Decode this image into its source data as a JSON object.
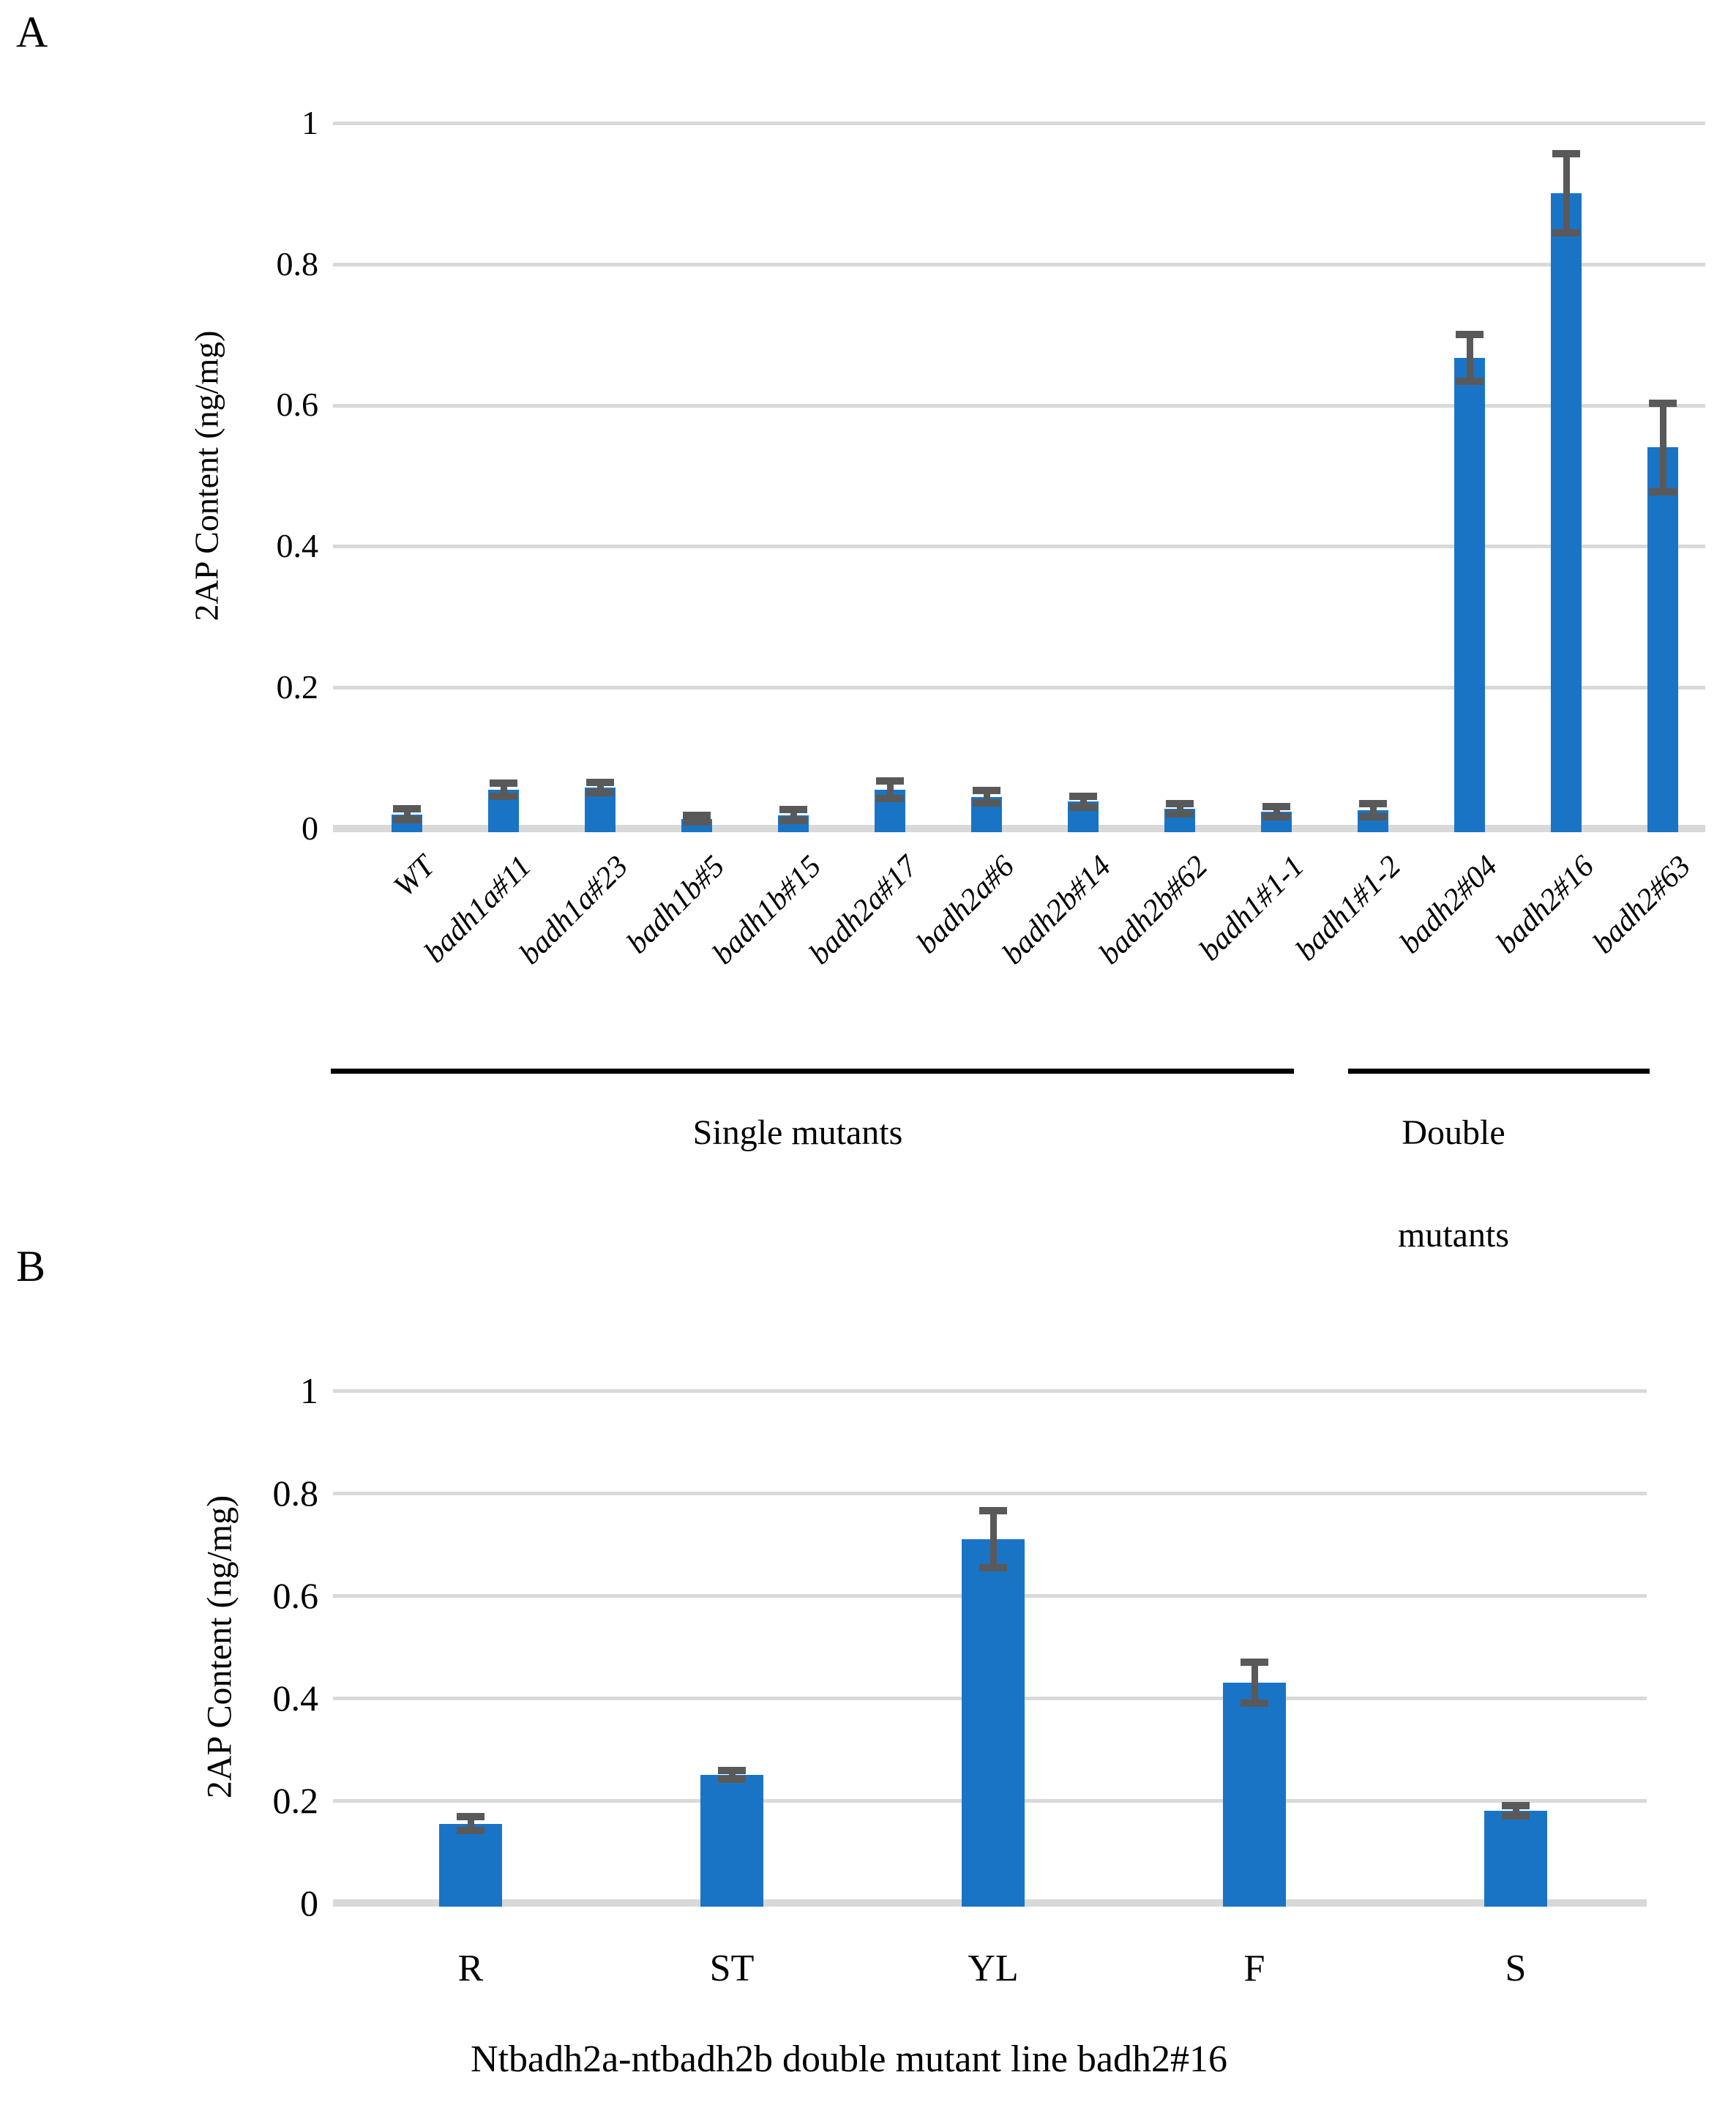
{
  "colors": {
    "bar": "#1A74C6",
    "error_bar": "#595959",
    "gridline": "#D9D9D9",
    "baseline": "#D9D9D9",
    "group_line": "#000000",
    "text": "#000000"
  },
  "chart_data": [
    {
      "panel_label": "A",
      "type": "bar",
      "title": "",
      "ylabel": "2AP Content (ng/mg)",
      "xlabel": "",
      "ylim": [
        0,
        1
      ],
      "yticks": [
        0,
        0.2,
        0.4,
        0.6,
        0.8,
        1
      ],
      "ytick_labels": [
        "0",
        "0.2",
        "0.4",
        "0.6",
        "0.8",
        "1"
      ],
      "grid": true,
      "legend": "none",
      "categories": [
        "WT",
        "badh1a#11",
        "badh1a#23",
        "badh1b#5",
        "badh1b#15",
        "badh2a#17",
        "badh2a#6",
        "badh2b#14",
        "badh2b#62",
        "badh1#1-1",
        "badh1#1-2",
        "badh2#04",
        "badh2#16",
        "badh2#63"
      ],
      "values": [
        0.02,
        0.055,
        0.058,
        0.014,
        0.019,
        0.055,
        0.045,
        0.038,
        0.028,
        0.024,
        0.026,
        0.667,
        0.9,
        0.54
      ],
      "errors": [
        0.008,
        0.009,
        0.007,
        0.005,
        0.008,
        0.012,
        0.009,
        0.008,
        0.007,
        0.007,
        0.009,
        0.033,
        0.056,
        0.063
      ],
      "groups": [
        {
          "label": "Single mutants",
          "from": "WT",
          "to": "badh1#1-2"
        },
        {
          "label": "Double mutants",
          "from": "badh2#04",
          "to": "badh2#63"
        }
      ]
    },
    {
      "panel_label": "B",
      "type": "bar",
      "title": "",
      "ylabel": "2AP Content (ng/mg)",
      "xlabel": "Ntbadh2a-ntbadh2b double mutant line badh2#16",
      "ylim": [
        0,
        1
      ],
      "yticks": [
        0,
        0.2,
        0.4,
        0.6,
        0.8,
        1
      ],
      "ytick_labels": [
        "0",
        "0.2",
        "0.4",
        "0.6",
        "0.8",
        "1"
      ],
      "grid": true,
      "legend": "none",
      "categories": [
        "R",
        "ST",
        "YL",
        "F",
        "S"
      ],
      "values": [
        0.155,
        0.25,
        0.71,
        0.43,
        0.18
      ],
      "errors": [
        0.013,
        0.008,
        0.056,
        0.04,
        0.01
      ]
    }
  ]
}
